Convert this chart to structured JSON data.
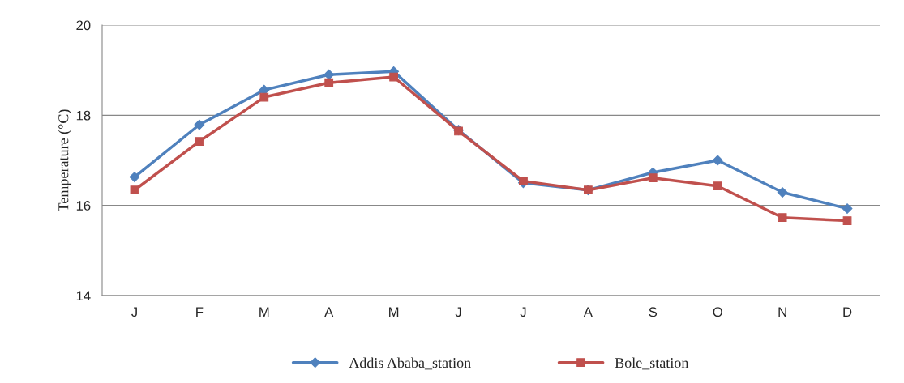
{
  "chart_data": {
    "type": "line",
    "ylabel": "Temperature (°C)",
    "categories": [
      "J",
      "F",
      "M",
      "A",
      "M",
      "J",
      "J",
      "A",
      "S",
      "O",
      "N",
      "D"
    ],
    "series": [
      {
        "name": "Addis Ababa_station",
        "color": "#4f81bd",
        "marker": "diamond",
        "values": [
          16.63,
          17.79,
          18.56,
          18.9,
          18.97,
          17.67,
          16.5,
          16.34,
          16.73,
          17.0,
          16.29,
          15.93
        ]
      },
      {
        "name": "Bole_station",
        "color": "#c0504d",
        "marker": "square",
        "values": [
          16.34,
          17.42,
          18.4,
          18.72,
          18.85,
          17.65,
          16.54,
          16.34,
          16.61,
          16.43,
          15.73,
          15.66
        ]
      }
    ],
    "ylim": [
      14,
      20
    ],
    "yticks": [
      14,
      16,
      18,
      20
    ],
    "grid": "y",
    "legend": "bottom",
    "line_style": "solid"
  }
}
